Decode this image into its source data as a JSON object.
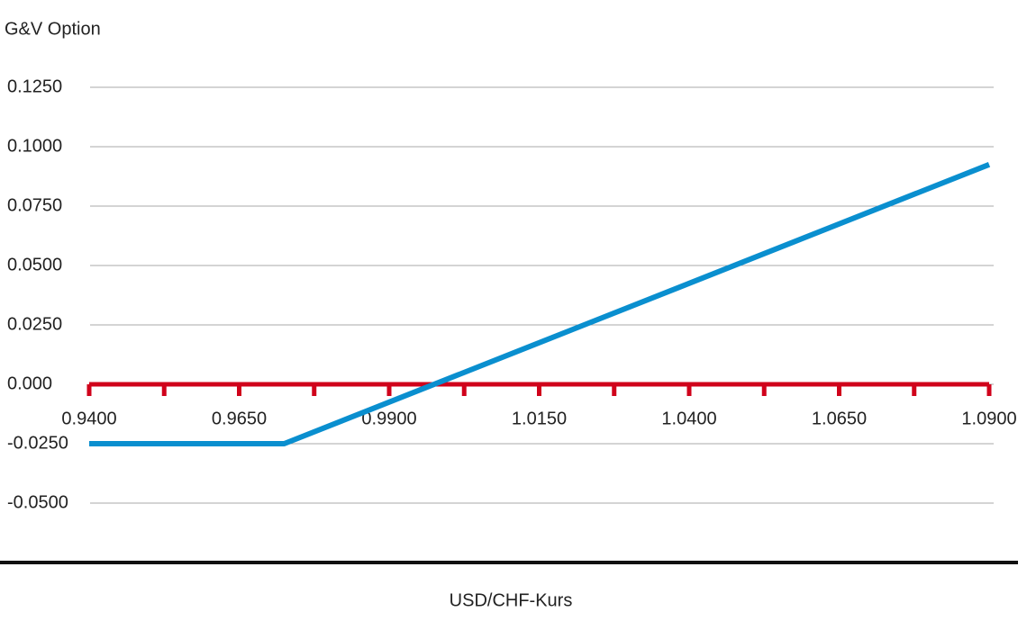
{
  "chart_data": {
    "type": "line",
    "y_label": "G&V Option",
    "x_label": "USD/CHF-Kurs",
    "x": [
      0.94,
      0.9725,
      1.09
    ],
    "series": [
      {
        "name": "G&V Option",
        "color": "#0a8fcf",
        "values": [
          -0.025,
          -0.025,
          0.0925
        ]
      }
    ],
    "xlim": [
      0.94,
      1.09
    ],
    "xticks": [
      {
        "value": 0.94,
        "label": "0.9400"
      },
      {
        "value": 0.965,
        "label": "0.9650"
      },
      {
        "value": 0.99,
        "label": "0.9900"
      },
      {
        "value": 1.015,
        "label": "1.0150"
      },
      {
        "value": 1.04,
        "label": "1.0400"
      },
      {
        "value": 1.065,
        "label": "1.0650"
      },
      {
        "value": 1.09,
        "label": "1.0900"
      }
    ],
    "xminor_ticks": [
      0.9525,
      0.9775,
      1.0025,
      1.0275,
      1.0525,
      1.0775
    ],
    "ylim": [
      -0.075,
      0.125
    ],
    "yticks": [
      {
        "value": 0.125,
        "label": "0.1250"
      },
      {
        "value": 0.1,
        "label": "0.1000"
      },
      {
        "value": 0.075,
        "label": "0.0750"
      },
      {
        "value": 0.05,
        "label": "0.0500"
      },
      {
        "value": 0.025,
        "label": "0.0250"
      },
      {
        "value": 0,
        "label": "0.000"
      },
      {
        "value": -0.025,
        "label": "-0.0250"
      },
      {
        "value": -0.05,
        "label": "-0.0500"
      }
    ],
    "axis_color": "#d0021b",
    "grid": true
  }
}
